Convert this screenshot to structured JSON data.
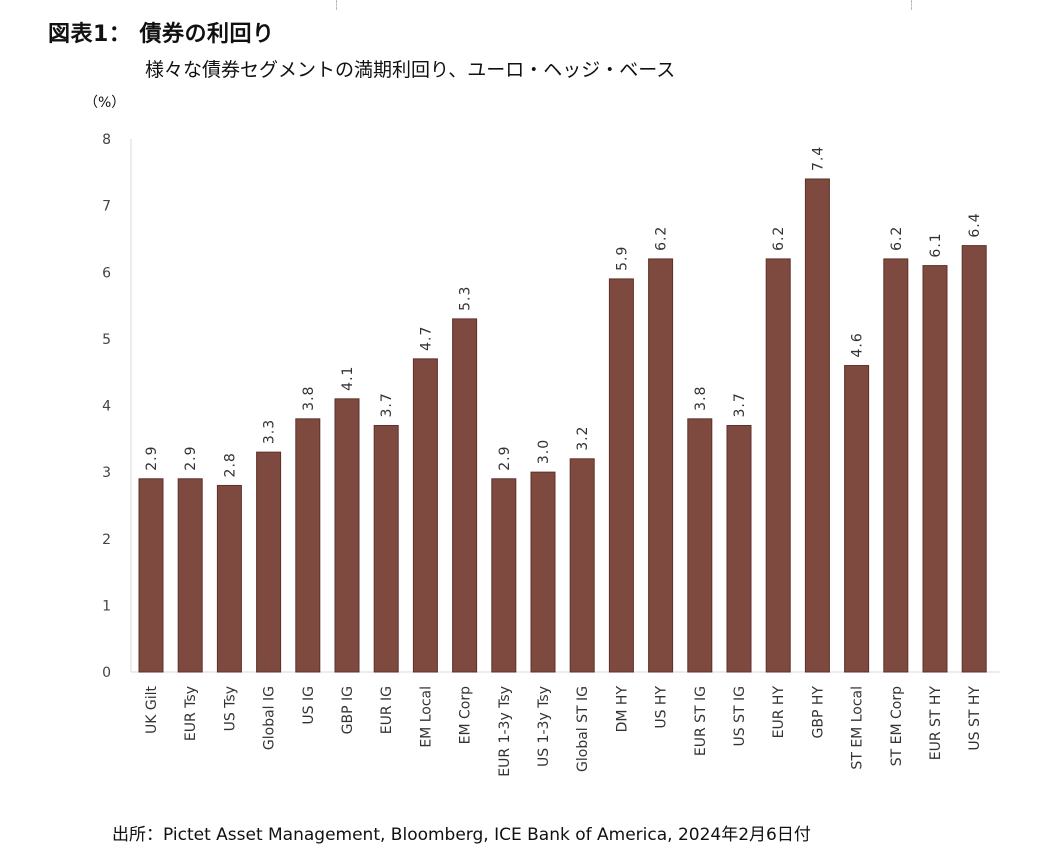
{
  "figure": {
    "title": "図表1： 債券の利回り",
    "subtitle": "様々な債券セグメントの満期利回り、ユーロ・ヘッジ・ベース",
    "unit_label": "（%）",
    "source": "出所：Pictet Asset Management, Bloomberg,  ICE Bank of America, 2024年2月6日付"
  },
  "chart_data": {
    "type": "bar",
    "title": "図表1： 債券の利回り",
    "subtitle": "様々な債券セグメントの満期利回り、ユーロ・ヘッジ・ベース",
    "ylabel": "（%）",
    "xlabel": "",
    "ylim": [
      0,
      8
    ],
    "yticks": [
      0,
      1,
      2,
      3,
      4,
      5,
      6,
      7,
      8
    ],
    "grid": false,
    "legend": "none",
    "bar_color": "#7e4a40",
    "categories": [
      "UK Gilt",
      "EUR Tsy",
      "US Tsy",
      "Global IG",
      "US IG",
      "GBP IG",
      "EUR IG",
      "EM Local",
      "EM Corp",
      "EUR 1-3y Tsy",
      "US 1-3y Tsy",
      "Global ST IG",
      "DM HY",
      "US HY",
      "EUR ST IG",
      "US ST IG",
      "EUR HY",
      "GBP HY",
      "ST EM Local",
      "ST EM Corp",
      "EUR ST HY",
      "US ST HY"
    ],
    "values": [
      2.9,
      2.9,
      2.8,
      3.3,
      3.8,
      4.1,
      3.7,
      4.7,
      5.3,
      2.9,
      3.0,
      3.2,
      5.9,
      6.2,
      3.8,
      3.7,
      6.2,
      7.4,
      4.6,
      6.2,
      6.1,
      6.4
    ],
    "value_labels": [
      "2.9",
      "2.9",
      "2.8",
      "3.3",
      "3.8",
      "4.1",
      "3.7",
      "4.7",
      "5.3",
      "2.9",
      "3.0",
      "3.2",
      "5.9",
      "6.2",
      "3.8",
      "3.7",
      "6.2",
      "7.4",
      "4.6",
      "6.2",
      "6.1",
      "6.4"
    ]
  }
}
